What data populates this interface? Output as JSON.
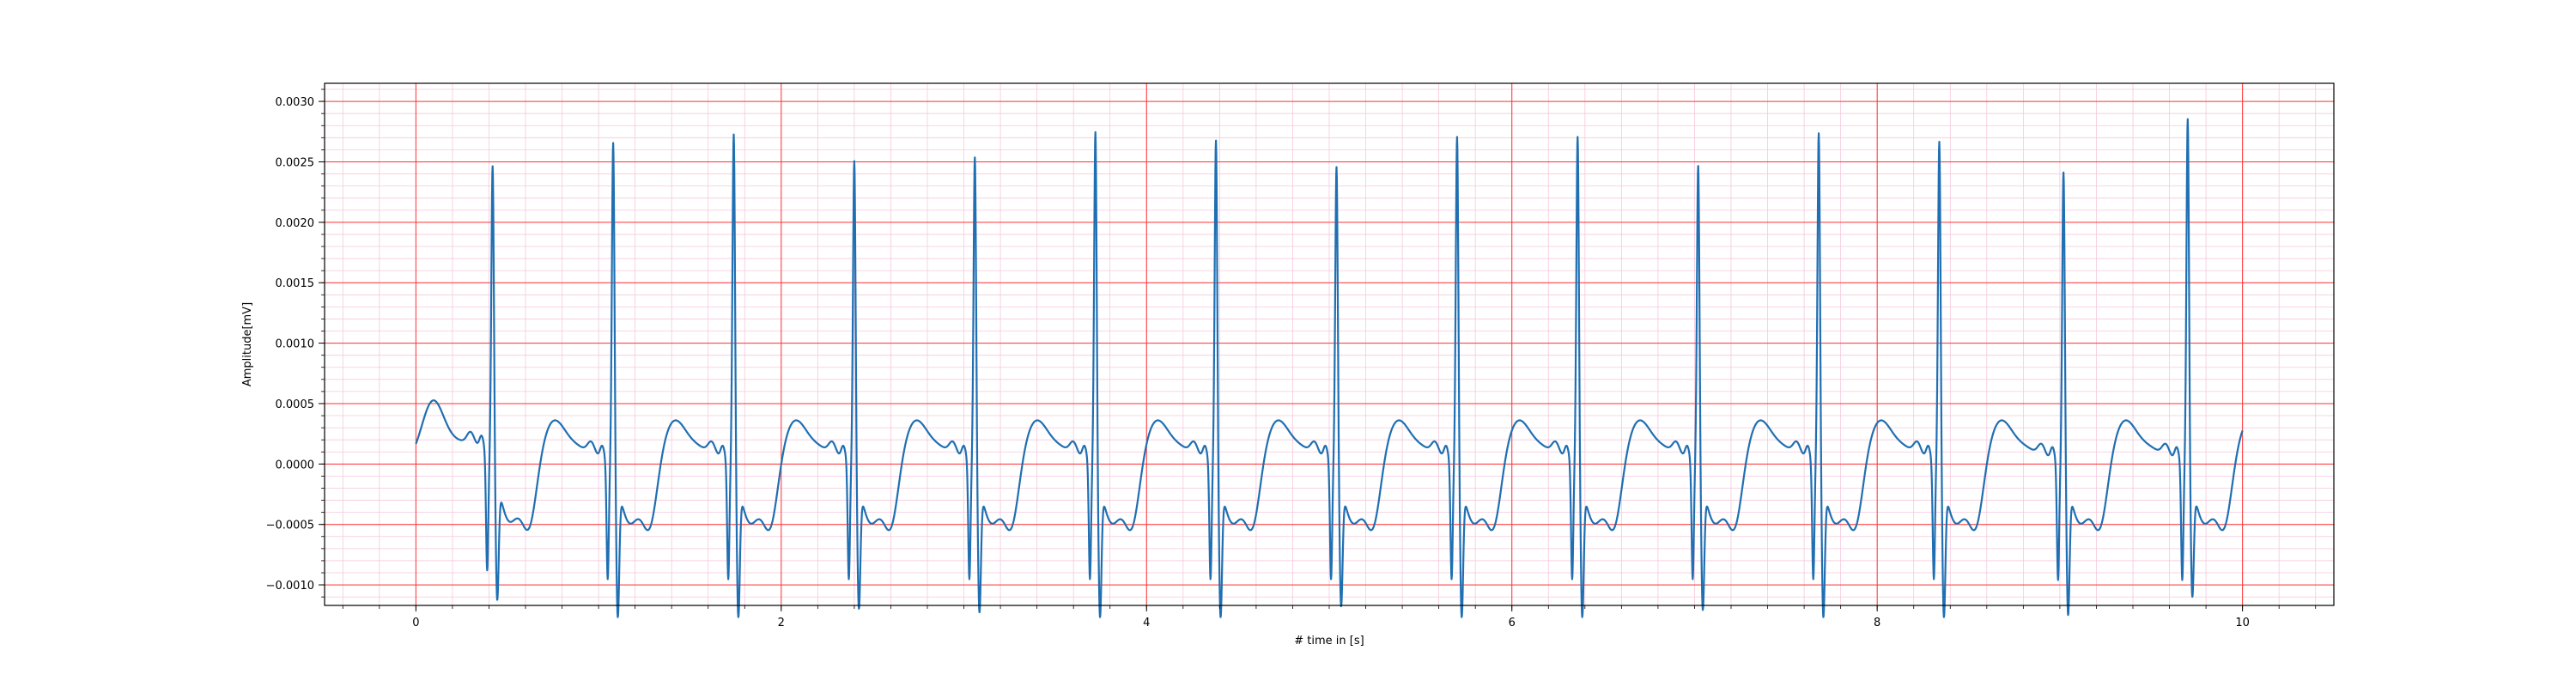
{
  "chart_data": {
    "type": "line",
    "title": "",
    "xlabel": "# time in [s]",
    "ylabel": "Amplitude[mV]",
    "xlim": [
      -0.5,
      10.5
    ],
    "ylim": [
      -0.00117,
      0.00315
    ],
    "x_ticks": [
      0,
      2,
      4,
      6,
      8,
      10
    ],
    "x_tick_labels": [
      "0",
      "2",
      "4",
      "6",
      "8",
      "10"
    ],
    "y_ticks": [
      -0.001,
      -0.0005,
      0.0,
      0.0005,
      0.001,
      0.0015,
      0.002,
      0.0025,
      0.003
    ],
    "y_tick_labels": [
      "−0.0010",
      "−0.0005",
      "0.0000",
      "0.0005",
      "0.0010",
      "0.0015",
      "0.0020",
      "0.0025",
      "0.0030"
    ],
    "grid": {
      "major": true,
      "minor": true,
      "major_color": "#ff3333",
      "minor_color": "#f6c8dc"
    },
    "line_color": "#1f6fb2",
    "series": [
      {
        "beats": [
          {
            "t": 0.42,
            "r": 0.0025,
            "s": -0.00087
          },
          {
            "t": 1.08,
            "r": 0.00275,
            "s": -0.00097
          },
          {
            "t": 1.74,
            "r": 0.00282,
            "s": -0.00097
          },
          {
            "t": 2.4,
            "r": 0.0026,
            "s": -0.0009
          },
          {
            "t": 3.06,
            "r": 0.00263,
            "s": -0.00093
          },
          {
            "t": 3.72,
            "r": 0.00284,
            "s": -0.00097
          },
          {
            "t": 4.38,
            "r": 0.00277,
            "s": -0.00097
          },
          {
            "t": 5.04,
            "r": 0.00255,
            "s": -0.00088
          },
          {
            "t": 5.7,
            "r": 0.0028,
            "s": -0.00097
          },
          {
            "t": 6.36,
            "r": 0.0028,
            "s": -0.00097
          },
          {
            "t": 7.02,
            "r": 0.00256,
            "s": -0.00091
          },
          {
            "t": 7.68,
            "r": 0.00283,
            "s": -0.00097
          },
          {
            "t": 8.34,
            "r": 0.00276,
            "s": -0.00097
          },
          {
            "t": 9.02,
            "r": 0.00251,
            "s": -0.00095
          },
          {
            "t": 9.7,
            "r": 0.00295,
            "s": -0.0008
          }
        ],
        "t_range": [
          0,
          10
        ]
      }
    ]
  }
}
